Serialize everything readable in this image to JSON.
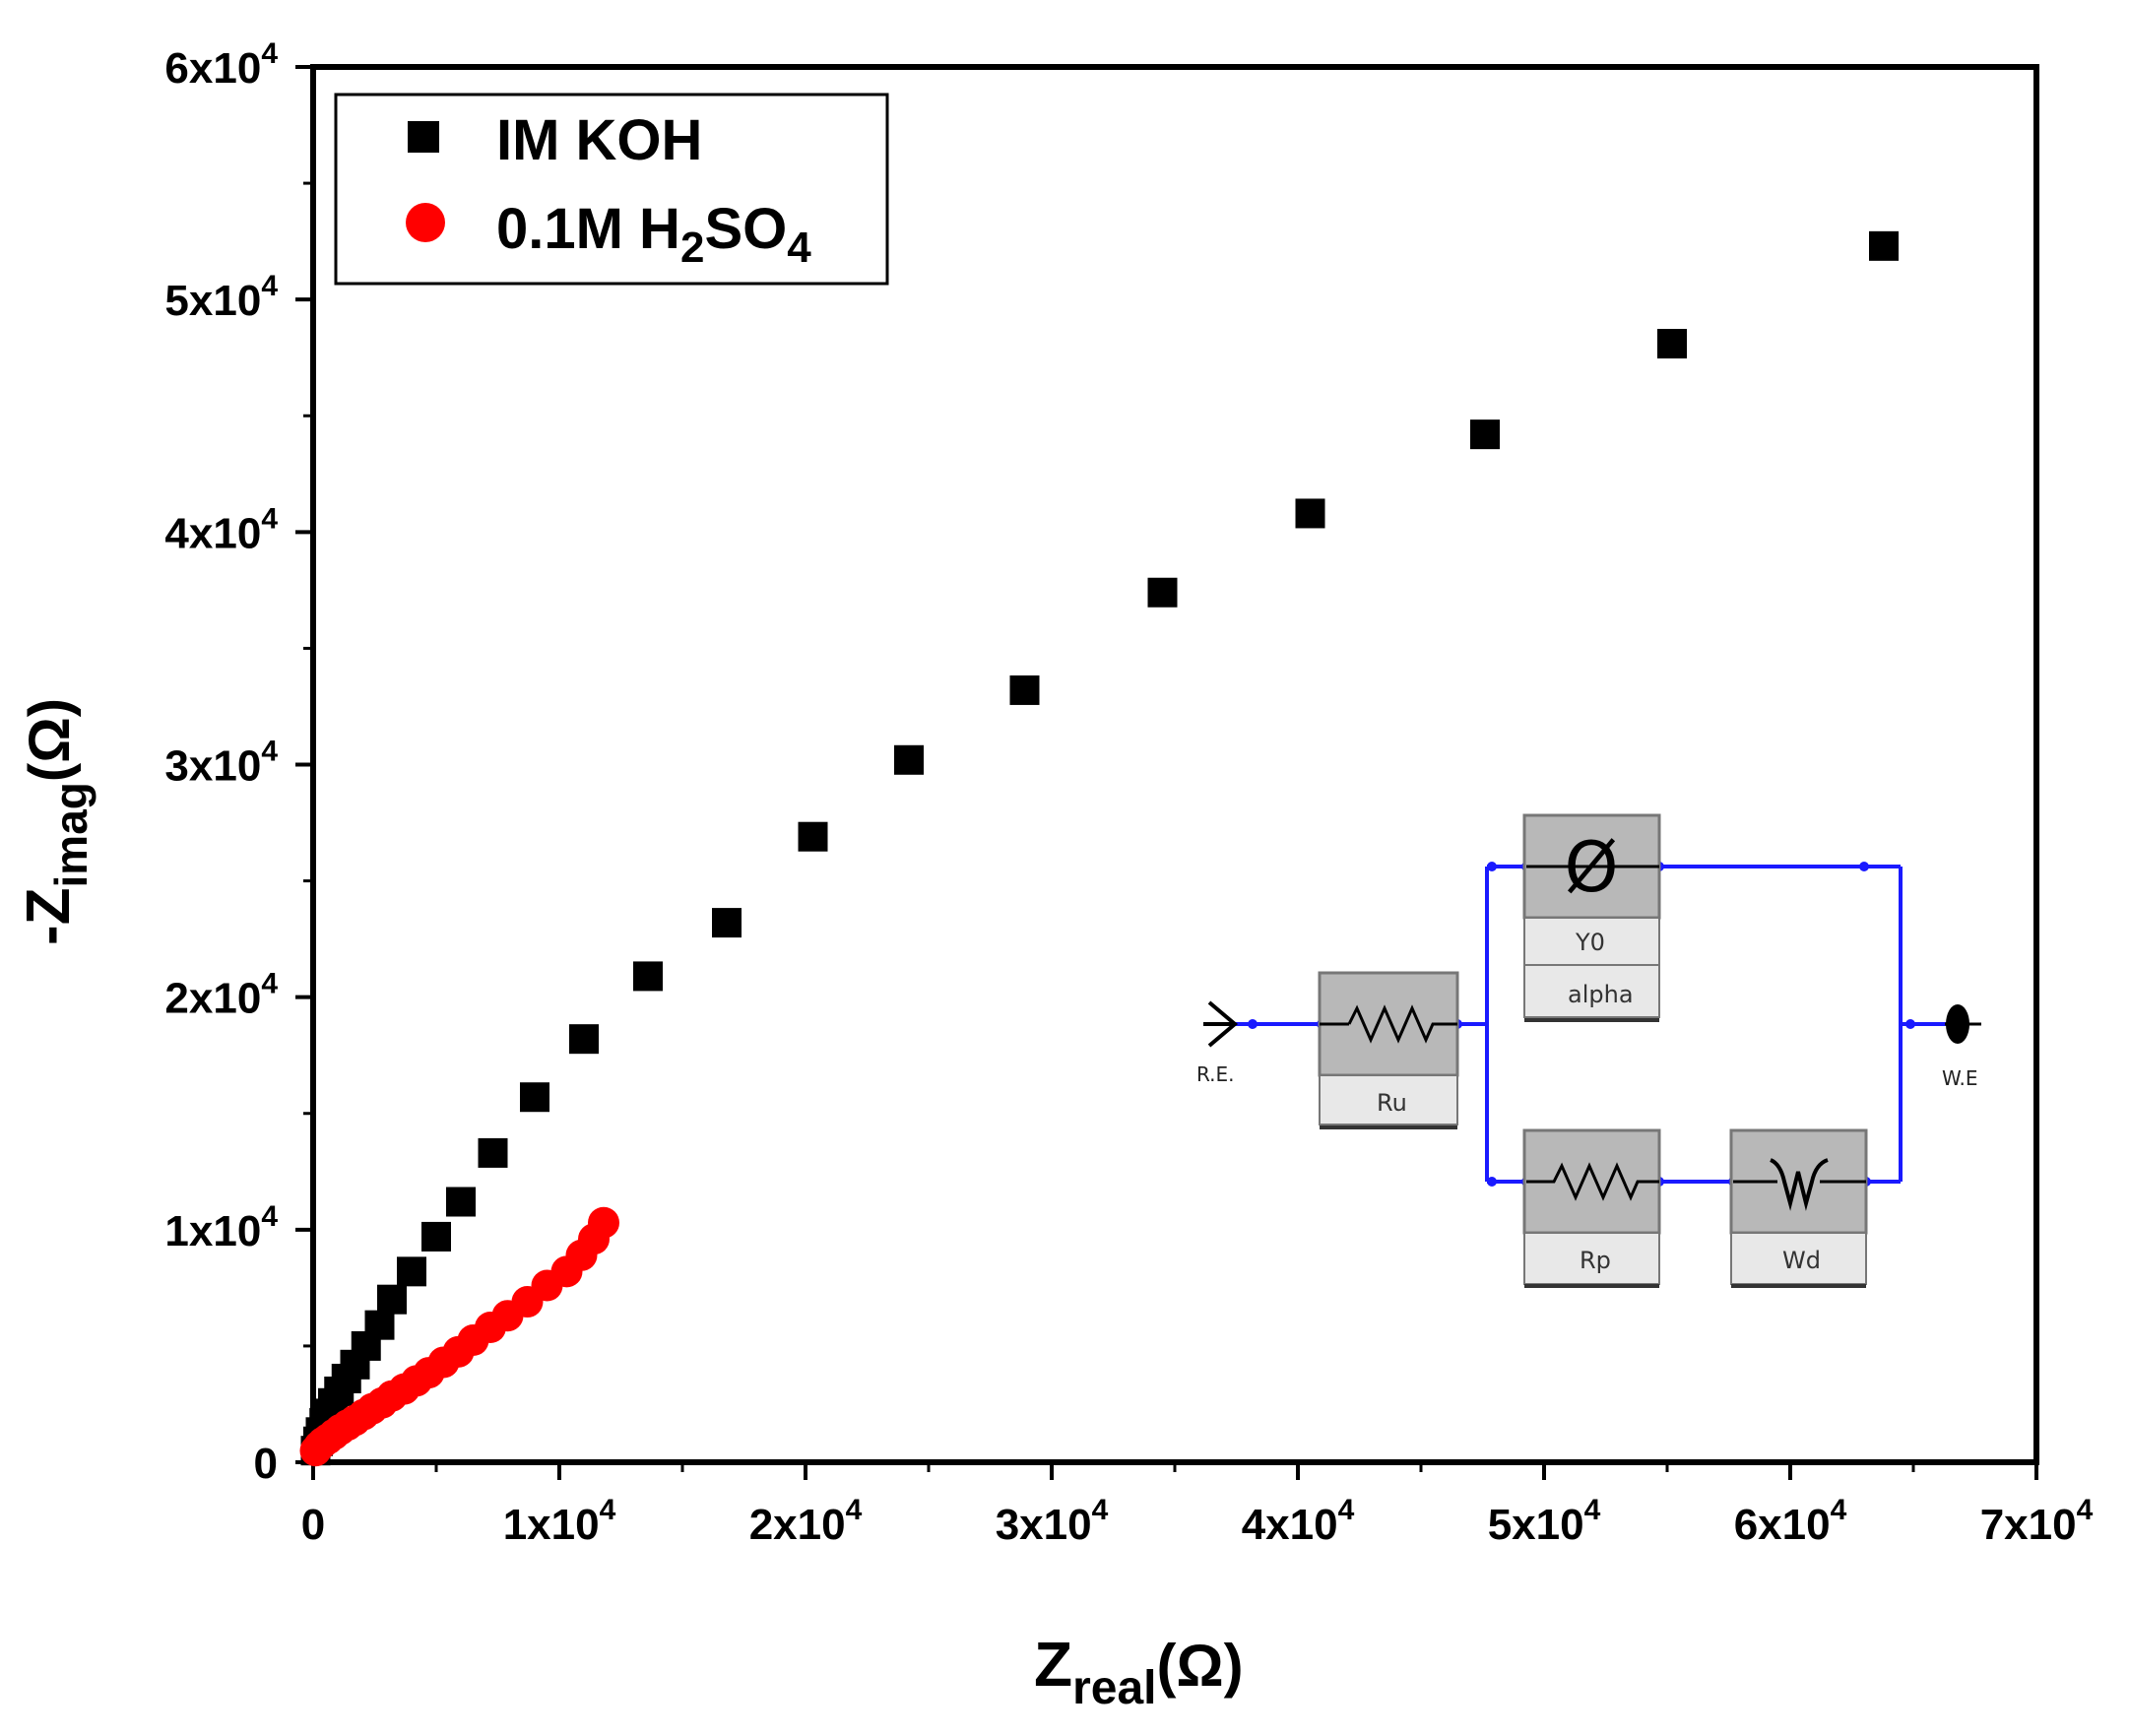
{
  "chart_data": {
    "type": "scatter",
    "title": "",
    "xlabel": {
      "base": "Z",
      "sub": "real",
      "unit": "(Ω)"
    },
    "ylabel": {
      "prefix": "-Z",
      "sub": "imag",
      "unit": "(Ω)"
    },
    "xlim": [
      0,
      70000
    ],
    "ylim": [
      0,
      60000
    ],
    "grid": false,
    "x_ticks": [
      {
        "value": 0,
        "label": "0",
        "exp": ""
      },
      {
        "value": 10000,
        "label": "1x10",
        "exp": "4"
      },
      {
        "value": 20000,
        "label": "2x10",
        "exp": "4"
      },
      {
        "value": 30000,
        "label": "3x10",
        "exp": "4"
      },
      {
        "value": 40000,
        "label": "4x10",
        "exp": "4"
      },
      {
        "value": 50000,
        "label": "5x10",
        "exp": "4"
      },
      {
        "value": 60000,
        "label": "6x10",
        "exp": "4"
      },
      {
        "value": 70000,
        "label": "7x10",
        "exp": "4"
      }
    ],
    "y_ticks": [
      {
        "value": 0,
        "label": "0",
        "exp": ""
      },
      {
        "value": 10000,
        "label": "1x10",
        "exp": "4"
      },
      {
        "value": 20000,
        "label": "2x10",
        "exp": "4"
      },
      {
        "value": 30000,
        "label": "3x10",
        "exp": "4"
      },
      {
        "value": 40000,
        "label": "4x10",
        "exp": "4"
      },
      {
        "value": 50000,
        "label": "5x10",
        "exp": "4"
      },
      {
        "value": 60000,
        "label": "6x10",
        "exp": "4"
      }
    ],
    "legend_position": "top-left",
    "series": [
      {
        "name": "IM KOH",
        "marker": "square",
        "color": "#000000",
        "x": [
          100,
          200,
          300,
          450,
          600,
          800,
          1050,
          1350,
          1700,
          2150,
          2700,
          3200,
          4000,
          5000,
          6000,
          7300,
          9000,
          11000,
          13600,
          16800,
          20300,
          24200,
          28900,
          34500,
          40500,
          47600,
          55200,
          63800
        ],
        "y": [
          500,
          900,
          1300,
          1700,
          2100,
          2550,
          3050,
          3600,
          4200,
          5000,
          5900,
          7000,
          8200,
          9700,
          11200,
          13300,
          15700,
          18200,
          20900,
          23200,
          26900,
          30200,
          33200,
          37400,
          40800,
          44200,
          48100,
          52300
        ]
      },
      {
        "name": "0.1M H2SO4",
        "legend_label": {
          "main": "0.1M H",
          "sub1": "2",
          "mid": "SO",
          "sub2": "4"
        },
        "marker": "circle",
        "color": "#ff0000",
        "x": [
          100,
          250,
          400,
          600,
          850,
          1100,
          1400,
          1700,
          2050,
          2400,
          2800,
          3200,
          3700,
          4200,
          4700,
          5300,
          5900,
          6500,
          7200,
          7900,
          8700,
          9500,
          10300,
          10900,
          11400,
          11800
        ],
        "y": [
          500,
          700,
          850,
          1000,
          1200,
          1400,
          1600,
          1800,
          2050,
          2300,
          2550,
          2850,
          3150,
          3500,
          3850,
          4300,
          4750,
          5250,
          5800,
          6300,
          6900,
          7600,
          8200,
          8900,
          9600,
          10300
        ]
      }
    ]
  },
  "inset_circuit": {
    "start_label": "R.E.",
    "end_label": "W.E",
    "elements": {
      "ru": "Ru",
      "y0": "Y0",
      "alpha": "alpha",
      "rp": "Rp",
      "wd": "Wd"
    },
    "cpe_symbol": "Ø",
    "wire_color": "#1a1aff"
  }
}
